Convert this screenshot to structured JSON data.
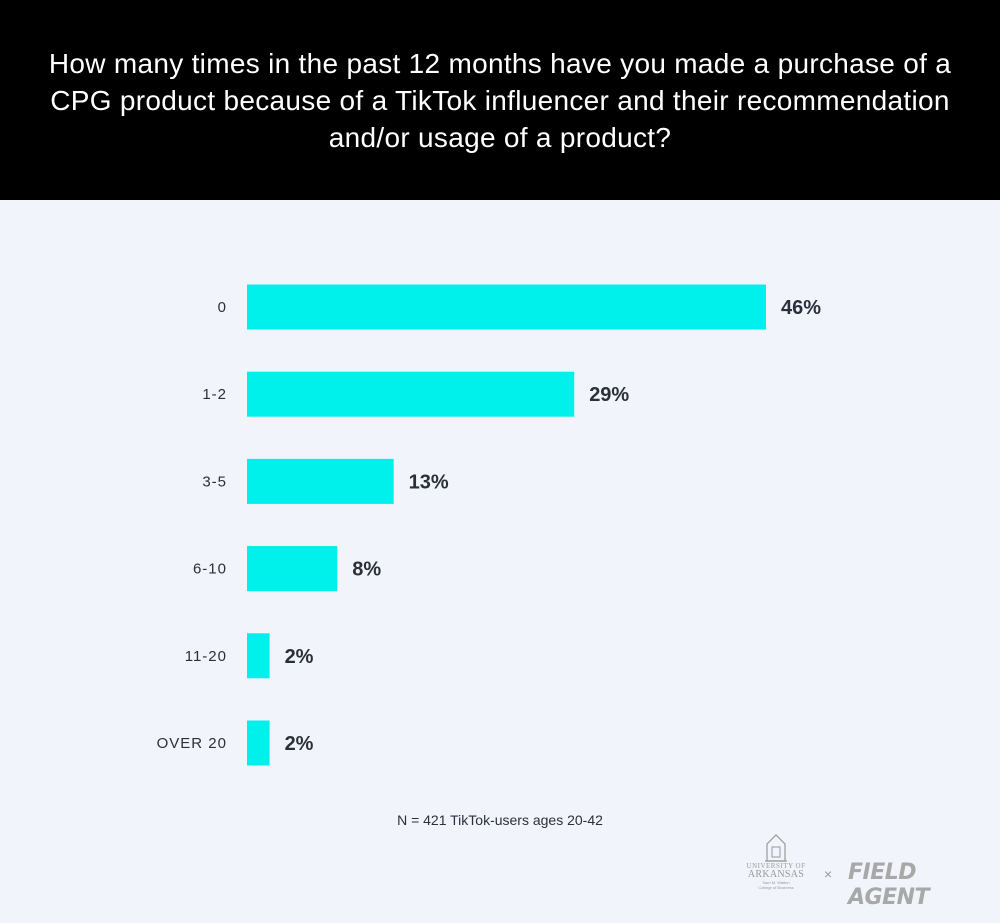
{
  "header": {
    "title": "How many times in the past 12 months have you made a purchase of a CPG product because of a TikTok influencer and their recommendation and/or usage of a product?"
  },
  "chart_data": {
    "type": "bar",
    "orientation": "horizontal",
    "categories": [
      "0",
      "1-2",
      "3-5",
      "6-10",
      "11-20",
      "OVER 20"
    ],
    "values": [
      46,
      29,
      13,
      8,
      2,
      2
    ],
    "value_labels": [
      "46%",
      "29%",
      "13%",
      "8%",
      "2%",
      "2%"
    ],
    "unit": "%",
    "bar_color": "#00f0ec",
    "grid": false,
    "legend": "none"
  },
  "footnote": "N = 421 TikTok-users ages 20-42",
  "logos": {
    "university": {
      "line1": "UNIVERSITY OF",
      "line2": "ARKANSAS",
      "line3": "Sam M. Walton",
      "line4": "College of Business"
    },
    "separator": "×",
    "partner": "FIELD AGENT"
  },
  "colors": {
    "header_bg": "#000000",
    "page_bg": "#f1f4fb",
    "text": "#2b2f3a"
  }
}
